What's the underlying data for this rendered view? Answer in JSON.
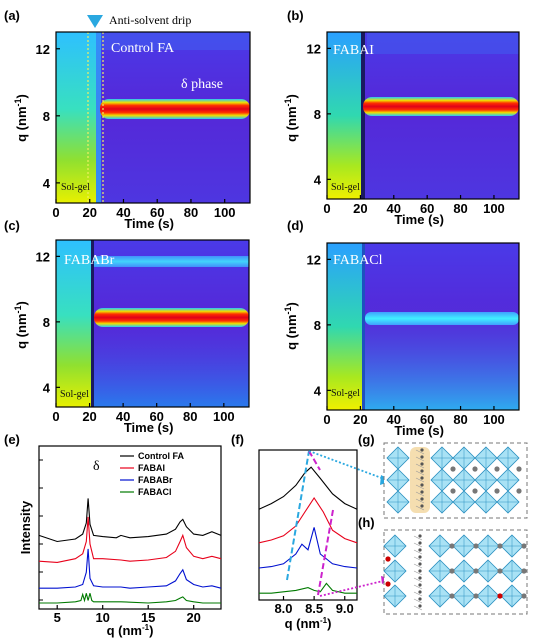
{
  "panels": {
    "a": {
      "label": "(a)",
      "title": "Control FA",
      "note": "δ phase",
      "solgel": "Sol-gel",
      "drip": "Anti-solvent drip"
    },
    "b": {
      "label": "(b)",
      "title": "FABAI",
      "solgel": "Sol-gel"
    },
    "c": {
      "label": "(c)",
      "title": "FABABr",
      "solgel": "Sol-gel"
    },
    "d": {
      "label": "(d)",
      "title": "FABACl",
      "solgel": "Sol-gel"
    },
    "e": {
      "label": "(e)"
    },
    "f": {
      "label": "(f)"
    },
    "g": {
      "label": "(g)"
    },
    "h": {
      "label": "(h)"
    }
  },
  "heatmap_axes": {
    "xlabel": "Time (s)",
    "ylabel": "q (nm",
    "ylabel_sup": "-1",
    "ylabel_end": ")",
    "xticks": [
      "0",
      "20",
      "40",
      "60",
      "80",
      "100"
    ],
    "yticks": [
      "4",
      "8",
      "12"
    ]
  },
  "colors": {
    "bg_purple": "#5a25d8",
    "band_red": "#e8001a",
    "band_cyan": "#39d7ff",
    "solgel_yellow": "#d9e800",
    "cyan_line": "#2aa8e0",
    "magenta_line": "#cc22cc"
  },
  "chart_data": [
    {
      "type": "line",
      "panel": "e",
      "xlabel": "q (nm",
      "xlabel_sup": "-1",
      "xlabel_end": ")",
      "ylabel": "Intensity",
      "xlim": [
        3,
        23
      ],
      "xticks": [
        "5",
        "10",
        "15",
        "20"
      ],
      "annotation": "δ",
      "series": [
        {
          "name": "Control FA",
          "color": "#000000",
          "x": [
            3,
            5,
            7,
            7.8,
            8.2,
            8.4,
            8.6,
            9,
            10,
            11.5,
            12,
            13,
            15,
            17,
            18,
            18.5,
            18.8,
            19.2,
            20,
            21,
            22,
            23
          ],
          "y": [
            0.55,
            0.5,
            0.52,
            0.56,
            0.65,
            0.85,
            0.64,
            0.55,
            0.54,
            0.53,
            0.55,
            0.53,
            0.54,
            0.56,
            0.6,
            0.66,
            0.68,
            0.62,
            0.56,
            0.55,
            0.58,
            0.55
          ]
        },
        {
          "name": "FABAI",
          "color": "#e8001a",
          "x": [
            3,
            5,
            7,
            7.8,
            8.2,
            8.4,
            8.6,
            9,
            10,
            12,
            13,
            15,
            17,
            18,
            18.5,
            18.8,
            19.2,
            20,
            21,
            22,
            23
          ],
          "y": [
            0.34,
            0.33,
            0.36,
            0.4,
            0.5,
            0.7,
            0.48,
            0.36,
            0.36,
            0.35,
            0.34,
            0.35,
            0.37,
            0.42,
            0.5,
            0.55,
            0.45,
            0.38,
            0.36,
            0.38,
            0.36
          ]
        },
        {
          "name": "FABABr",
          "color": "#0010d0",
          "x": [
            3,
            5,
            7,
            7.8,
            8.2,
            8.4,
            8.6,
            9,
            10,
            12,
            13,
            15,
            17,
            18,
            18.5,
            18.8,
            19.2,
            20,
            21,
            22,
            23
          ],
          "y": [
            0.12,
            0.12,
            0.13,
            0.15,
            0.25,
            0.44,
            0.2,
            0.14,
            0.13,
            0.13,
            0.12,
            0.13,
            0.14,
            0.18,
            0.24,
            0.27,
            0.19,
            0.15,
            0.13,
            0.14,
            0.12
          ]
        },
        {
          "name": "FABACl",
          "color": "#007a00",
          "x": [
            3,
            5,
            7,
            7.6,
            7.8,
            8.0,
            8.2,
            8.4,
            8.6,
            8.8,
            9,
            10,
            12,
            15,
            17,
            18,
            18.5,
            18.8,
            19.2,
            20,
            21,
            23
          ],
          "y": [
            0.0,
            0.0,
            0.01,
            0.02,
            0.07,
            0.02,
            0.08,
            0.02,
            0.08,
            0.02,
            0.01,
            0.01,
            0.01,
            0.0,
            0.01,
            0.02,
            0.04,
            0.05,
            0.02,
            0.01,
            0.0,
            0.0
          ]
        }
      ]
    },
    {
      "type": "line",
      "panel": "f",
      "xlabel": "q (nm",
      "xlabel_sup": "-1",
      "xlabel_end": ")",
      "xlim": [
        7.6,
        9.2
      ],
      "xticks": [
        "8.0",
        "8.5",
        "9.0"
      ],
      "series": [
        {
          "name": "Control FA",
          "color": "#000000",
          "x": [
            7.6,
            7.8,
            8.0,
            8.2,
            8.35,
            8.45,
            8.6,
            8.8,
            9.0,
            9.2
          ],
          "y": [
            0.62,
            0.66,
            0.71,
            0.79,
            0.88,
            0.92,
            0.84,
            0.73,
            0.66,
            0.62
          ]
        },
        {
          "name": "FABAI",
          "color": "#e8001a",
          "x": [
            7.6,
            7.8,
            8.0,
            8.2,
            8.35,
            8.5,
            8.65,
            8.8,
            9.0,
            9.2
          ],
          "y": [
            0.38,
            0.4,
            0.43,
            0.5,
            0.6,
            0.7,
            0.6,
            0.47,
            0.41,
            0.38
          ]
        },
        {
          "name": "FABABr",
          "color": "#0010d0",
          "x": [
            7.6,
            7.8,
            8.0,
            8.2,
            8.3,
            8.4,
            8.5,
            8.6,
            8.8,
            9.0,
            9.2
          ],
          "y": [
            0.2,
            0.21,
            0.23,
            0.3,
            0.37,
            0.33,
            0.49,
            0.3,
            0.23,
            0.21,
            0.2
          ]
        },
        {
          "name": "FABACl",
          "color": "#007a00",
          "x": [
            7.6,
            7.8,
            8.0,
            8.2,
            8.4,
            8.5,
            8.6,
            8.7,
            8.8,
            9.0,
            9.2
          ],
          "y": [
            0.02,
            0.02,
            0.03,
            0.04,
            0.06,
            0.04,
            0.03,
            0.09,
            0.04,
            0.02,
            0.02
          ]
        }
      ]
    }
  ]
}
